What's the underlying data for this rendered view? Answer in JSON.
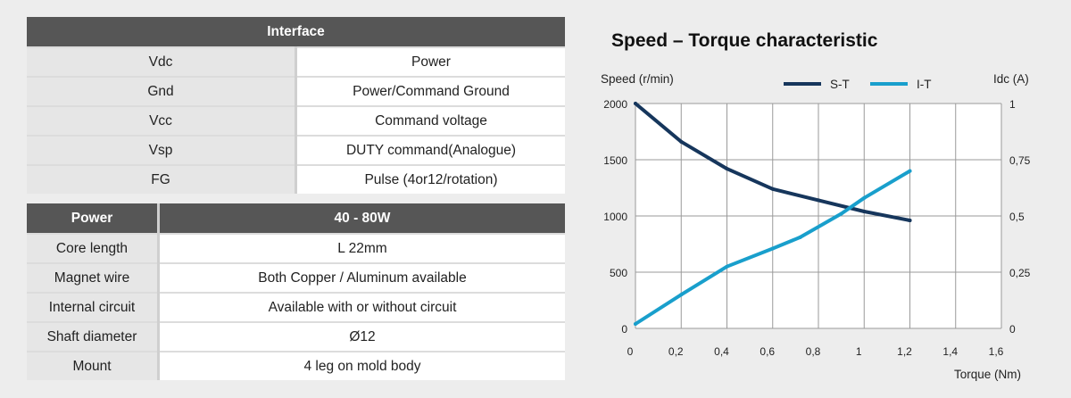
{
  "interface_table": {
    "header": "Interface",
    "rows": [
      {
        "key": "Vdc",
        "value": "Power"
      },
      {
        "key": "Gnd",
        "value": "Power/Command Ground"
      },
      {
        "key": "Vcc",
        "value": "Command voltage"
      },
      {
        "key": "Vsp",
        "value": "DUTY command(Analogue)"
      },
      {
        "key": "FG",
        "value": "Pulse (4or12/rotation)"
      }
    ]
  },
  "power_table": {
    "header_key": "Power",
    "header_value": "40 - 80W",
    "rows": [
      {
        "key": "Core length",
        "value": "L 22mm"
      },
      {
        "key": "Magnet wire",
        "value": "Both Copper / Aluminum available"
      },
      {
        "key": "Internal circuit",
        "value": "Available with or without circuit"
      },
      {
        "key": "Shaft diameter",
        "value": "Ø12"
      },
      {
        "key": "Mount",
        "value": "4 leg on mold body"
      }
    ]
  },
  "colors": {
    "table_header": "#565656",
    "series_st": "#16365c",
    "series_it": "#199fcc",
    "grid": "#9a9a9a"
  },
  "chart_data": {
    "type": "line",
    "title": "Speed – Torque characteristic",
    "xlabel": "Torque (Nm)",
    "ylabel": "Speed (r/min)",
    "y2label": "Idc (A)",
    "xlim": [
      0,
      1.6
    ],
    "ylim": [
      0,
      2000
    ],
    "y2lim": [
      0,
      1
    ],
    "x_ticks": [
      "0",
      "0,2",
      "0,4",
      "0,6",
      "0,8",
      "1",
      "1,2",
      "1,4",
      "1,6"
    ],
    "y_ticks": [
      "0",
      "500",
      "1000",
      "1500",
      "2000"
    ],
    "y2_ticks": [
      "0",
      "0,25",
      "0,5",
      "0,75",
      "1"
    ],
    "grid": true,
    "legend_position": "top",
    "series": [
      {
        "name": "S-T",
        "axis": "left",
        "x": [
          0,
          0.2,
          0.4,
          0.6,
          0.8,
          1.0,
          1.2
        ],
        "y": [
          2000,
          1660,
          1420,
          1240,
          1140,
          1040,
          960
        ]
      },
      {
        "name": "I-T",
        "axis": "right",
        "x": [
          0,
          0.2,
          0.4,
          0.6,
          0.72,
          0.9,
          1.0,
          1.2
        ],
        "y": [
          0.02,
          0.15,
          0.275,
          0.355,
          0.405,
          0.51,
          0.58,
          0.7
        ]
      }
    ]
  }
}
